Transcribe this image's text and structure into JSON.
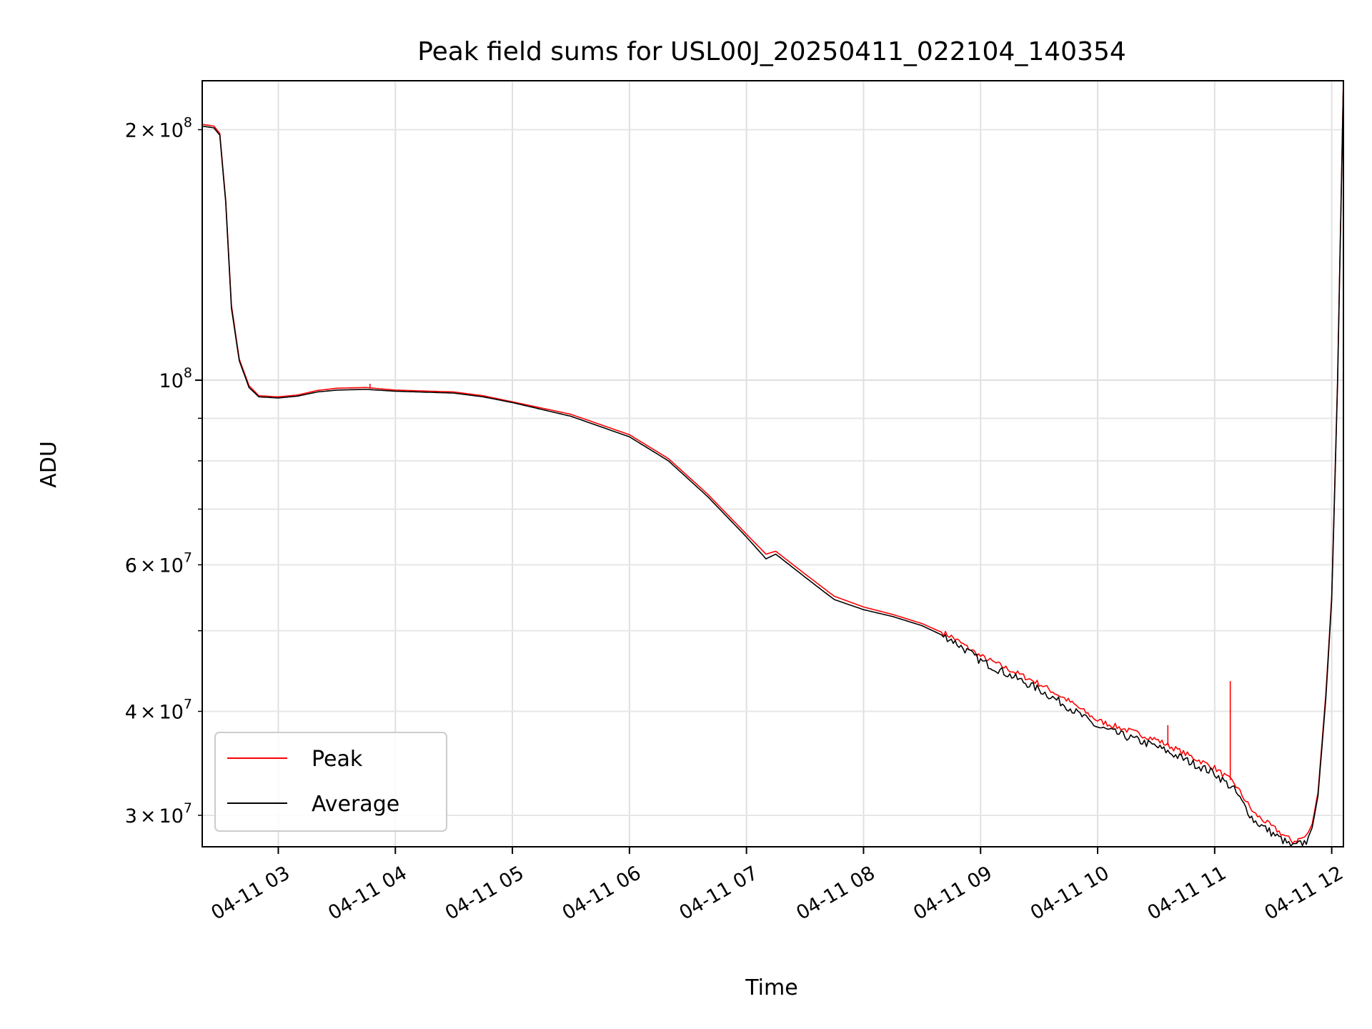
{
  "chart_data": {
    "type": "line",
    "title": "Peak field sums for USL00J_20250411_022104_140354",
    "xlabel": "Time",
    "ylabel": "ADU",
    "yscale": "log",
    "grid": true,
    "legend_placement": "lower-left",
    "xlim": [
      "2025-04-11 02:21",
      "2025-04-11 12:06"
    ],
    "ylim": [
      27500000,
      229000000
    ],
    "x_ticks": [
      {
        "t": "2025-04-11 03:00",
        "label": "04-11 03"
      },
      {
        "t": "2025-04-11 04:00",
        "label": "04-11 04"
      },
      {
        "t": "2025-04-11 05:00",
        "label": "04-11 05"
      },
      {
        "t": "2025-04-11 06:00",
        "label": "04-11 06"
      },
      {
        "t": "2025-04-11 07:00",
        "label": "04-11 07"
      },
      {
        "t": "2025-04-11 08:00",
        "label": "04-11 08"
      },
      {
        "t": "2025-04-11 09:00",
        "label": "04-11 09"
      },
      {
        "t": "2025-04-11 10:00",
        "label": "04-11 10"
      },
      {
        "t": "2025-04-11 11:00",
        "label": "04-11 11"
      },
      {
        "t": "2025-04-11 12:00",
        "label": "04-11 12"
      }
    ],
    "y_major_ticks": [
      {
        "v": 100000000,
        "base": "10",
        "exp": "8",
        "mant": ""
      }
    ],
    "y_minor_ticks": [
      {
        "v": 30000000,
        "base": "10",
        "exp": "7",
        "mant": "3"
      },
      {
        "v": 40000000,
        "base": "10",
        "exp": "7",
        "mant": "4"
      },
      {
        "v": 50000000
      },
      {
        "v": 60000000,
        "base": "10",
        "exp": "7",
        "mant": "6"
      },
      {
        "v": 70000000
      },
      {
        "v": 80000000
      },
      {
        "v": 90000000
      },
      {
        "v": 200000000,
        "base": "10",
        "exp": "8",
        "mant": "2"
      }
    ],
    "series": [
      {
        "name": "Peak",
        "color": "#ff0000",
        "points": [
          [
            "2025-04-11 02:21",
            203000000
          ],
          [
            "2025-04-11 02:27",
            202000000
          ],
          [
            "2025-04-11 02:30",
            198000000
          ],
          [
            "2025-04-11 02:33",
            165000000
          ],
          [
            "2025-04-11 02:36",
            123000000
          ],
          [
            "2025-04-11 02:40",
            106000000
          ],
          [
            "2025-04-11 02:45",
            98500000
          ],
          [
            "2025-04-11 02:50",
            95800000
          ],
          [
            "2025-04-11 03:00",
            95500000
          ],
          [
            "2025-04-11 03:10",
            96000000
          ],
          [
            "2025-04-11 03:20",
            97200000
          ],
          [
            "2025-04-11 03:30",
            97800000
          ],
          [
            "2025-04-11 03:45",
            98000000
          ],
          [
            "2025-04-11 04:00",
            97300000
          ],
          [
            "2025-04-11 04:30",
            96800000
          ],
          [
            "2025-04-11 04:45",
            95800000
          ],
          [
            "2025-04-11 05:00",
            94200000
          ],
          [
            "2025-04-11 05:30",
            91000000
          ],
          [
            "2025-04-11 06:00",
            86000000
          ],
          [
            "2025-04-11 06:20",
            80500000
          ],
          [
            "2025-04-11 06:40",
            73000000
          ],
          [
            "2025-04-11 07:00",
            65300000
          ],
          [
            "2025-04-11 07:10",
            61800000
          ],
          [
            "2025-04-11 07:15",
            62300000
          ],
          [
            "2025-04-11 07:30",
            58500000
          ],
          [
            "2025-04-11 07:45",
            55000000
          ],
          [
            "2025-04-11 08:00",
            53400000
          ],
          [
            "2025-04-11 08:15",
            52300000
          ],
          [
            "2025-04-11 08:30",
            51000000
          ],
          [
            "2025-04-11 08:45",
            49200000
          ],
          [
            "2025-04-11 09:00",
            46600000
          ],
          [
            "2025-04-11 09:30",
            43200000
          ],
          [
            "2025-04-11 09:45",
            41200000
          ],
          [
            "2025-04-11 10:00",
            39000000
          ],
          [
            "2025-04-11 10:30",
            37000000
          ],
          [
            "2025-04-11 11:00",
            34200000
          ],
          [
            "2025-04-11 11:10",
            32800000
          ],
          [
            "2025-04-11 11:20",
            30200000
          ],
          [
            "2025-04-11 11:30",
            29000000
          ],
          [
            "2025-04-11 11:40",
            27900000
          ],
          [
            "2025-04-11 11:47",
            28300000
          ],
          [
            "2025-04-11 11:50",
            29300000
          ],
          [
            "2025-04-11 11:53",
            32000000
          ],
          [
            "2025-04-11 11:57",
            42000000
          ],
          [
            "2025-04-11 12:00",
            55000000
          ],
          [
            "2025-04-11 12:03",
            100000000
          ],
          [
            "2025-04-11 12:06",
            230000000
          ]
        ]
      },
      {
        "name": "Average",
        "color": "#000000",
        "points": [
          [
            "2025-04-11 02:21",
            202000000
          ],
          [
            "2025-04-11 02:27",
            201000000
          ],
          [
            "2025-04-11 02:30",
            197000000
          ],
          [
            "2025-04-11 02:33",
            164000000
          ],
          [
            "2025-04-11 02:36",
            122000000
          ],
          [
            "2025-04-11 02:40",
            105500000
          ],
          [
            "2025-04-11 02:45",
            98000000
          ],
          [
            "2025-04-11 02:50",
            95500000
          ],
          [
            "2025-04-11 03:00",
            95200000
          ],
          [
            "2025-04-11 03:10",
            95700000
          ],
          [
            "2025-04-11 03:20",
            96800000
          ],
          [
            "2025-04-11 03:30",
            97300000
          ],
          [
            "2025-04-11 03:45",
            97500000
          ],
          [
            "2025-04-11 04:00",
            97000000
          ],
          [
            "2025-04-11 04:30",
            96500000
          ],
          [
            "2025-04-11 04:45",
            95500000
          ],
          [
            "2025-04-11 05:00",
            94000000
          ],
          [
            "2025-04-11 05:30",
            90500000
          ],
          [
            "2025-04-11 06:00",
            85500000
          ],
          [
            "2025-04-11 06:20",
            80000000
          ],
          [
            "2025-04-11 06:40",
            72500000
          ],
          [
            "2025-04-11 07:00",
            64800000
          ],
          [
            "2025-04-11 07:10",
            61000000
          ],
          [
            "2025-04-11 07:15",
            61800000
          ],
          [
            "2025-04-11 07:30",
            58000000
          ],
          [
            "2025-04-11 07:45",
            54500000
          ],
          [
            "2025-04-11 08:00",
            53000000
          ],
          [
            "2025-04-11 08:15",
            52000000
          ],
          [
            "2025-04-11 08:30",
            50700000
          ],
          [
            "2025-04-11 08:45",
            48800000
          ],
          [
            "2025-04-11 09:00",
            46000000
          ],
          [
            "2025-04-11 09:30",
            42500000
          ],
          [
            "2025-04-11 09:45",
            40500000
          ],
          [
            "2025-04-11 10:00",
            38300000
          ],
          [
            "2025-04-11 10:30",
            36300000
          ],
          [
            "2025-04-11 11:00",
            33700000
          ],
          [
            "2025-04-11 11:10",
            32200000
          ],
          [
            "2025-04-11 11:20",
            29600000
          ],
          [
            "2025-04-11 11:30",
            28500000
          ],
          [
            "2025-04-11 11:40",
            27500000
          ],
          [
            "2025-04-11 11:47",
            27900000
          ],
          [
            "2025-04-11 11:50",
            29000000
          ],
          [
            "2025-04-11 11:53",
            31700000
          ],
          [
            "2025-04-11 11:57",
            41500000
          ],
          [
            "2025-04-11 12:00",
            54500000
          ],
          [
            "2025-04-11 12:03",
            99000000
          ],
          [
            "2025-04-11 12:06",
            229000000
          ]
        ]
      }
    ],
    "annotations": [
      {
        "series": "Peak",
        "t": "2025-04-11 10:36",
        "v": 38500000,
        "note": "spike"
      },
      {
        "series": "Peak",
        "t": "2025-04-11 11:08",
        "v": 43500000,
        "note": "spike"
      },
      {
        "series": "Peak",
        "t": "2025-04-11 03:47",
        "v": 99000000,
        "note": "spike"
      }
    ]
  }
}
